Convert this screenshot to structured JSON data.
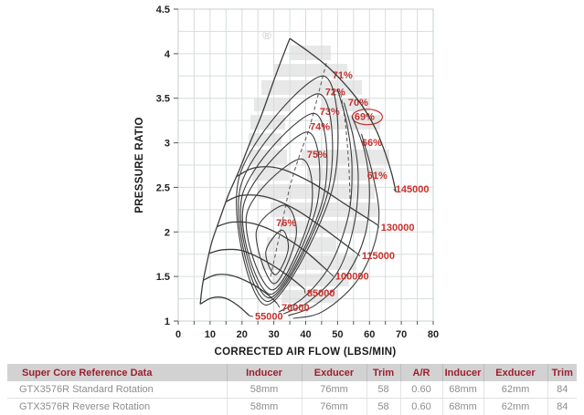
{
  "watermark": {
    "registered_icon": "®",
    "logo_letter": "G"
  },
  "chart_data": {
    "type": "line",
    "xlabel": "CORRECTED AIR FLOW (LBS/MIN)",
    "ylabel": "PRESSURE RATIO",
    "xlim": [
      0,
      80
    ],
    "ylim": [
      1,
      4.5
    ],
    "x_ticks": [
      "0",
      "10",
      "20",
      "30",
      "40",
      "50",
      "60",
      "70",
      "80"
    ],
    "y_ticks": [
      "1",
      "1.5",
      "2",
      "2.5",
      "3",
      "3.5",
      "4",
      "4.5"
    ],
    "grid": true,
    "minor_step": {
      "x": 5,
      "y": 0.25
    },
    "colors": {
      "curve": "#3c3c3c",
      "grid": "#d6dddb",
      "frame": "#c7cfcf",
      "label": "#c9302c",
      "leader": "#4a4a4a",
      "dash": "#555555"
    },
    "surge_line": {
      "points": [
        [
          6.9,
          1.19
        ],
        [
          7.6,
          1.4
        ],
        [
          8.8,
          1.62
        ],
        [
          10.5,
          1.88
        ],
        [
          12.8,
          2.12
        ],
        [
          15.8,
          2.42
        ],
        [
          19,
          2.68
        ],
        [
          22.5,
          3.0
        ],
        [
          26,
          3.3
        ],
        [
          29.5,
          3.65
        ],
        [
          32.3,
          3.92
        ],
        [
          35,
          4.17
        ]
      ]
    },
    "speed_lines": [
      {
        "label": "55000",
        "points": [
          [
            6.9,
            1.19
          ],
          [
            10.5,
            1.26
          ],
          [
            14.5,
            1.26
          ],
          [
            18.5,
            1.18
          ],
          [
            22.3,
            1.06
          ]
        ],
        "label_pos": [
          24.1,
          1.05
        ]
      },
      {
        "label": "70000",
        "points": [
          [
            7.9,
            1.46
          ],
          [
            12,
            1.52
          ],
          [
            17,
            1.51
          ],
          [
            23,
            1.42
          ],
          [
            28,
            1.3
          ],
          [
            31,
            1.2
          ]
        ],
        "label_pos": [
          32.4,
          1.15
        ]
      },
      {
        "label": "85000",
        "points": [
          [
            9.8,
            1.76
          ],
          [
            14,
            1.8
          ],
          [
            20,
            1.79
          ],
          [
            27,
            1.68
          ],
          [
            34,
            1.52
          ],
          [
            39.6,
            1.36
          ]
        ],
        "label_pos": [
          40.4,
          1.31
        ]
      },
      {
        "label": "100000",
        "points": [
          [
            12.2,
            2.06
          ],
          [
            17,
            2.11
          ],
          [
            24,
            2.09
          ],
          [
            32,
            1.97
          ],
          [
            40,
            1.78
          ],
          [
            47,
            1.56
          ]
        ],
        "label_pos": [
          49.3,
          1.5
        ]
      },
      {
        "label": "115000",
        "points": [
          [
            15,
            2.34
          ],
          [
            20,
            2.41
          ],
          [
            28,
            2.39
          ],
          [
            37,
            2.25
          ],
          [
            46,
            2.03
          ],
          [
            55.3,
            1.78
          ]
        ],
        "label_pos": [
          57.6,
          1.73
        ]
      },
      {
        "label": "130000",
        "points": [
          [
            18.2,
            2.62
          ],
          [
            24,
            2.72
          ],
          [
            32,
            2.71
          ],
          [
            42,
            2.55
          ],
          [
            52,
            2.32
          ],
          [
            62.5,
            2.08
          ]
        ],
        "label_pos": [
          63.6,
          2.05
        ]
      },
      {
        "label": "145000",
        "points": [
          [
            35,
            4.17
          ],
          [
            41,
            4.02
          ],
          [
            47,
            3.85
          ],
          [
            53,
            3.63
          ],
          [
            58,
            3.4
          ],
          [
            62,
            3.15
          ],
          [
            65,
            2.88
          ],
          [
            67,
            2.65
          ],
          [
            68.3,
            2.45
          ]
        ],
        "label_pos": [
          68.2,
          2.48
        ]
      }
    ],
    "efficiency_islands": [
      {
        "label": null,
        "anchors": [
          [
            32.5,
            2.02
          ],
          [
            34.5,
            1.8
          ],
          [
            30.5,
            1.52
          ],
          [
            27.5,
            1.78
          ]
        ]
      },
      {
        "label": "76%",
        "anchors": [
          [
            33.5,
            2.3
          ],
          [
            37,
            1.95
          ],
          [
            30,
            1.42
          ],
          [
            24.5,
            2.0
          ]
        ],
        "label_pos": [
          30.7,
          2.1
        ]
      },
      {
        "label": "75%",
        "anchors": [
          [
            38.5,
            2.82
          ],
          [
            41.5,
            2.2
          ],
          [
            29.5,
            1.35
          ],
          [
            21.5,
            2.2
          ]
        ],
        "label_pos": [
          40.4,
          2.87
        ]
      },
      {
        "label": "74%",
        "anchors": [
          [
            40.5,
            3.12
          ],
          [
            43.5,
            2.3
          ],
          [
            29,
            1.3
          ],
          [
            20.5,
            2.3
          ]
        ],
        "label_pos": [
          41.3,
          3.18
        ]
      },
      {
        "label": "73%",
        "anchors": [
          [
            42.5,
            3.33
          ],
          [
            45.5,
            2.38
          ],
          [
            28.5,
            1.26
          ],
          [
            20,
            2.4
          ]
        ],
        "label_pos": [
          44.4,
          3.35
        ]
      },
      {
        "label": "72%",
        "anchors": [
          [
            44,
            3.55
          ],
          [
            47,
            2.45
          ],
          [
            28,
            1.22
          ],
          [
            19.5,
            2.5
          ]
        ],
        "label_pos": [
          46.1,
          3.57
        ]
      },
      {
        "label": "71%",
        "anchors": [
          [
            45.5,
            3.75
          ],
          [
            48.5,
            2.5
          ],
          [
            27.5,
            1.18
          ],
          [
            19,
            2.6
          ]
        ],
        "label_pos": [
          48.4,
          3.76
        ]
      }
    ],
    "efficiency_contours": [
      {
        "label": "70%",
        "points": [
          [
            50,
            3.6
          ],
          [
            53,
            3.2
          ],
          [
            54.5,
            2.75
          ],
          [
            53.5,
            2.2
          ],
          [
            48,
            1.65
          ],
          [
            39.5,
            1.27
          ],
          [
            31.5,
            1.1
          ]
        ],
        "label_pos": [
          53.3,
          3.45
        ],
        "circled": false
      },
      {
        "label": "69%",
        "points": [
          [
            52,
            3.45
          ],
          [
            55,
            3.05
          ],
          [
            56.5,
            2.6
          ],
          [
            55,
            2.05
          ],
          [
            50,
            1.55
          ],
          [
            41,
            1.22
          ],
          [
            33,
            1.08
          ]
        ],
        "label_pos": [
          55.3,
          3.29
        ],
        "circled": true
      },
      {
        "label": "66%",
        "points": [
          [
            54.5,
            3.3
          ],
          [
            58.5,
            2.9
          ],
          [
            60,
            2.45
          ],
          [
            58.5,
            1.95
          ],
          [
            52.5,
            1.5
          ],
          [
            43,
            1.18
          ],
          [
            34.5,
            1.06
          ]
        ],
        "label_pos": [
          57.6,
          3.0
        ],
        "circled": false
      },
      {
        "label": "61%",
        "points": [
          [
            57.5,
            3.1
          ],
          [
            61,
            2.65
          ],
          [
            63,
            2.2
          ],
          [
            61,
            1.8
          ],
          [
            55,
            1.4
          ],
          [
            45,
            1.1
          ],
          [
            36,
            1.03
          ]
        ],
        "label_pos": [
          59.3,
          2.63
        ],
        "circled": false
      }
    ],
    "peak_efficiency_locus": [
      [
        [
          29,
          1.5
        ],
        [
          32,
          2.0
        ],
        [
          35,
          2.5
        ],
        [
          38,
          2.85
        ],
        [
          41,
          3.15
        ],
        [
          44,
          3.55
        ],
        [
          46.5,
          3.9
        ]
      ],
      [
        [
          54,
          2.3
        ],
        [
          53.5,
          2.75
        ],
        [
          52.5,
          3.2
        ],
        [
          51,
          3.55
        ]
      ]
    ]
  },
  "table": {
    "header": [
      "Super Core Reference Data",
      "Inducer",
      "Exducer",
      "Trim",
      "A/R",
      "Inducer",
      "Exducer",
      "Trim"
    ],
    "rows": [
      [
        "GTX3576R Standard Rotation",
        "58mm",
        "76mm",
        "58",
        "0.60",
        "68mm",
        "62mm",
        "84"
      ],
      [
        "GTX3576R Reverse Rotation",
        "58mm",
        "76mm",
        "58",
        "0.60",
        "68mm",
        "62mm",
        "84"
      ]
    ]
  }
}
